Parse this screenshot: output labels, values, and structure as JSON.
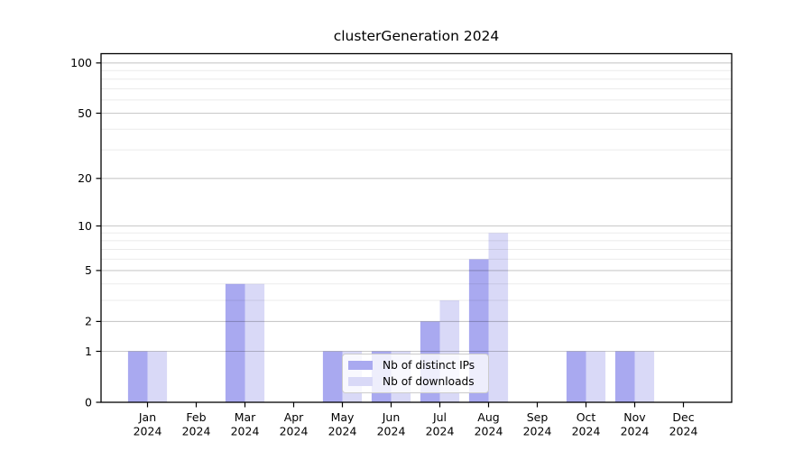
{
  "window": {
    "title": "clusterGeneration 2024"
  },
  "chart_data": {
    "type": "bar",
    "title": "clusterGeneration 2024",
    "categories": [
      "Jan",
      "Feb",
      "Mar",
      "Apr",
      "May",
      "Jun",
      "Jul",
      "Aug",
      "Sep",
      "Oct",
      "Nov",
      "Dec"
    ],
    "category_sublabel": "2024",
    "series": [
      {
        "name": "Nb of distinct IPs",
        "color": "#a9a9f0",
        "values": [
          1,
          0,
          4,
          0,
          1,
          1,
          2,
          6,
          0,
          1,
          1,
          0
        ]
      },
      {
        "name": "Nb of downloads",
        "color": "#d9d9f7",
        "values": [
          1,
          0,
          4,
          0,
          1,
          1,
          3,
          9,
          0,
          1,
          1,
          0
        ]
      }
    ],
    "y_axis": {
      "scale": "log10(1+x)",
      "ticks": [
        0,
        1,
        2,
        5,
        10,
        20,
        50,
        100
      ],
      "grid_values": [
        1,
        2,
        3,
        4,
        5,
        6,
        7,
        8,
        9,
        10,
        20,
        30,
        40,
        50,
        60,
        70,
        80,
        90,
        100
      ],
      "ylim": [
        0,
        113
      ]
    },
    "legend": {
      "position": "lower center inside"
    },
    "grid": true,
    "colors": {
      "axis": "#000000",
      "grid_minor": "rgba(0,0,0,0.08)",
      "grid_major": "rgba(0,0,0,0.21)",
      "legend_border": "#cccccc",
      "background": "#ffffff"
    }
  }
}
